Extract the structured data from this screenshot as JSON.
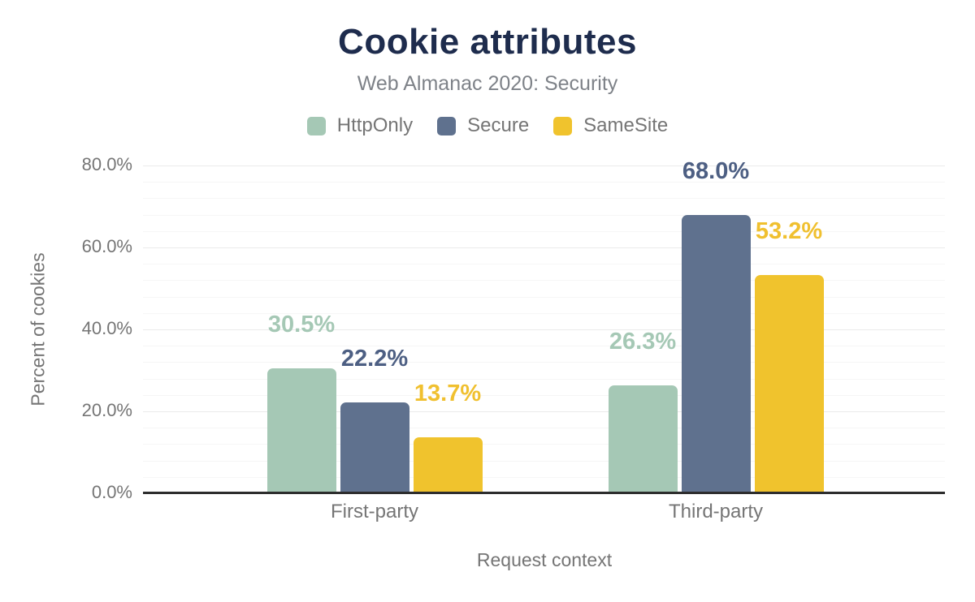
{
  "header": {
    "title": "Cookie attributes",
    "subtitle": "Web Almanac 2020: Security"
  },
  "chart_data": {
    "type": "bar",
    "categories": [
      "First-party",
      "Third-party"
    ],
    "series": [
      {
        "name": "HttpOnly",
        "color": "#a5c8b5",
        "label_color": "#a5c8b5",
        "values": [
          30.5,
          26.3
        ]
      },
      {
        "name": "Secure",
        "color": "#5f718e",
        "label_color": "#4d5f83",
        "values": [
          22.2,
          68.0
        ]
      },
      {
        "name": "SameSite",
        "color": "#f0c32d",
        "label_color": "#f0c02f",
        "values": [
          13.7,
          53.2
        ]
      }
    ],
    "data_labels": [
      [
        "30.5%",
        "22.2%",
        "13.7%"
      ],
      [
        "26.3%",
        "68.0%",
        "53.2%"
      ]
    ],
    "title": "Cookie attributes",
    "subtitle": "Web Almanac 2020: Security",
    "xlabel": "Request context",
    "ylabel": "Percent of cookies",
    "y_ticks": [
      "0.0%",
      "20.0%",
      "40.0%",
      "60.0%",
      "80.0%"
    ],
    "y_tick_values": [
      0,
      20,
      40,
      60,
      80
    ],
    "ylim": [
      0,
      80
    ],
    "grid": {
      "minor_step_percent": 4,
      "major_step_percent": 20,
      "on": true
    },
    "legend_position": "top"
  },
  "colors": {
    "title_navy": "#1e2c4d",
    "text_gray": "#757575",
    "subtitle_gray": "#7e8288",
    "axis_line": "#2d2d2d",
    "gridline_minor": "#f6f6f6",
    "gridline_major": "#ebebeb"
  }
}
